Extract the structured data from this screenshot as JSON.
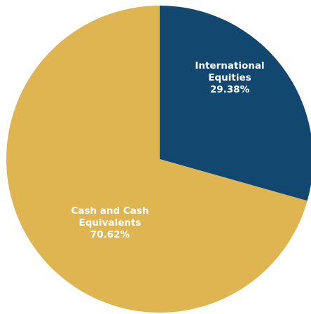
{
  "chart_data": {
    "type": "pie",
    "title": "",
    "legend": "none",
    "start_angle_deg": 0,
    "direction": "clockwise",
    "slices": [
      {
        "name": "International Equities",
        "label_lines": [
          "International",
          "Equities",
          "29.38%"
        ],
        "value": 29.38,
        "color": "#12486f"
      },
      {
        "name": "Cash and Cash Equivalents",
        "label_lines": [
          "Cash and Cash",
          "Equivalents",
          "70.62%"
        ],
        "value": 70.62,
        "color": "#deb551"
      }
    ]
  }
}
